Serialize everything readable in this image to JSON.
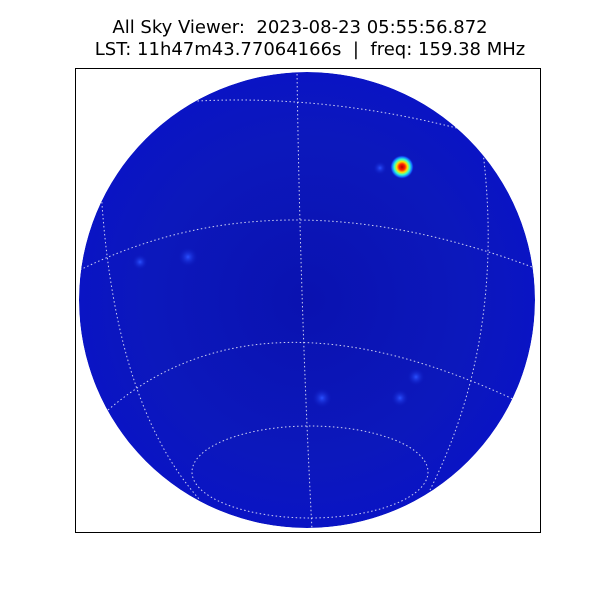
{
  "title": {
    "line1": "All Sky Viewer:  2023-08-23 05:55:56.872",
    "line2": "LST: 11h47m43.77064166s  |  freq: 159.38 MHz"
  }
}
